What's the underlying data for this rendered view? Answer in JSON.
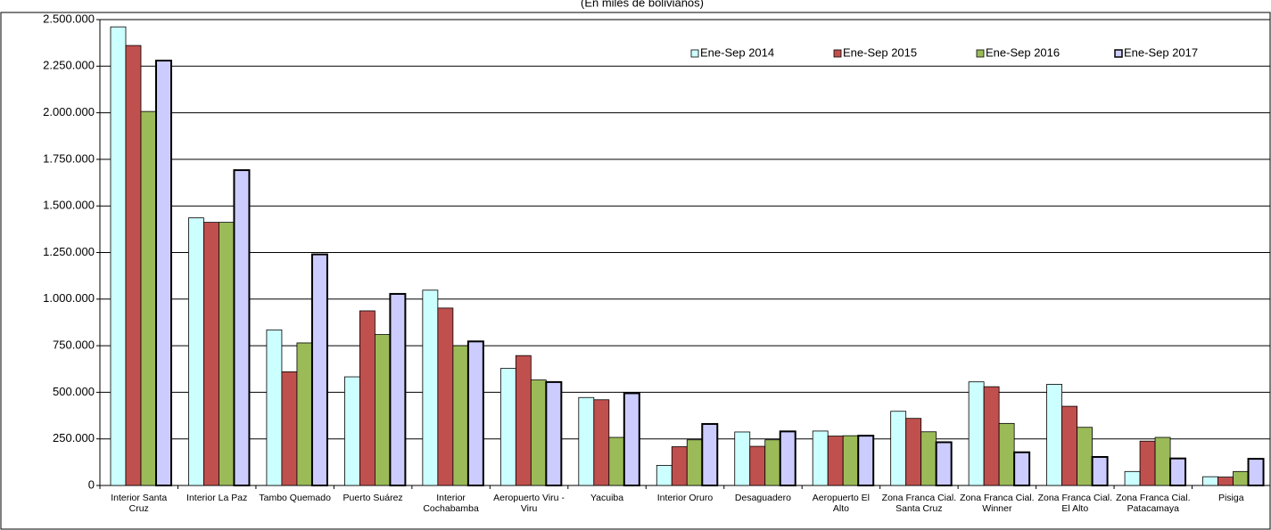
{
  "chart_data": {
    "type": "bar",
    "subtitle": "(En miles de bolivianos)",
    "categories": [
      "Interior Santa Cruz",
      "Interior La Paz",
      "Tambo Quemado",
      "Puerto Suárez",
      "Interior Cochabamba",
      "Aeropuerto Viru - Viru",
      "Yacuiba",
      "Interior Oruro",
      "Desaguadero",
      "Aeropuerto El Alto",
      "Zona Franca Cial. Santa Cruz",
      "Zona Franca Cial. Winner",
      "Zona Franca Cial. El Alto",
      "Zona Franca Cial. Patacamaya",
      "Pisiga"
    ],
    "series": [
      {
        "name": "Ene-Sep 2014",
        "color": "#ccffff",
        "values": [
          2461000,
          1436000,
          835000,
          583000,
          1048000,
          628000,
          472000,
          108000,
          287000,
          292000,
          398000,
          556000,
          543000,
          75000,
          47000
        ]
      },
      {
        "name": "Ene-Sep 2015",
        "color": "#c0504d",
        "values": [
          2361000,
          1412000,
          610000,
          937000,
          952000,
          697000,
          460000,
          208000,
          210000,
          265000,
          360000,
          530000,
          425000,
          238000,
          45000
        ]
      },
      {
        "name": "Ene-Sep 2016",
        "color": "#9bbb59",
        "values": [
          2007000,
          1412000,
          765000,
          810000,
          750000,
          566000,
          258000,
          245000,
          245000,
          267000,
          288000,
          333000,
          312000,
          258000,
          75000
        ]
      },
      {
        "name": "Ene-Sep 2017",
        "color": "#ccccff",
        "values": [
          2280000,
          1692000,
          1240000,
          1028000,
          773000,
          555000,
          495000,
          330000,
          290000,
          267000,
          232000,
          178000,
          153000,
          145000,
          143000
        ]
      }
    ],
    "ylim": [
      0,
      2500000
    ],
    "yticks": [
      0,
      {
        "value": 250000,
        "label": "250.000"
      },
      {
        "value": 500000,
        "label": "500.000"
      },
      {
        "value": 750000,
        "label": "750.000"
      },
      {
        "value": 1000000,
        "label": "1.000.000"
      },
      {
        "value": 1250000,
        "label": "1.250.000"
      },
      {
        "value": 1500000,
        "label": "1.500.000"
      },
      {
        "value": 1750000,
        "label": "1.750.000"
      },
      {
        "value": 2000000,
        "label": "2.000.000"
      },
      {
        "value": 2250000,
        "label": "2.250.000"
      },
      {
        "value": 2500000,
        "label": "2.500.000"
      }
    ],
    "grid": true,
    "legend": "top-right"
  }
}
